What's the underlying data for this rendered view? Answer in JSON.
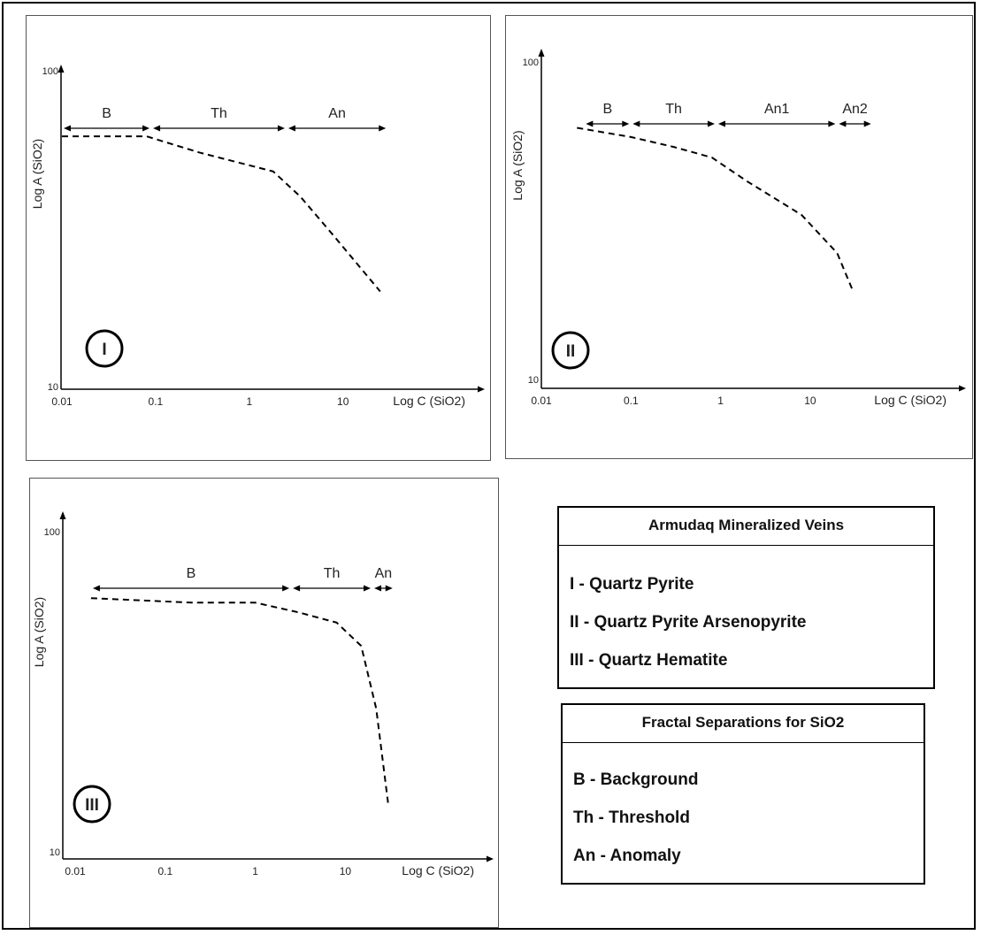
{
  "chart_data": [
    {
      "type": "line",
      "panel_label": "I",
      "xlabel": "Log C (SiO2)",
      "ylabel": "Log A (SiO2)",
      "x_scale": "log",
      "y_scale": "log",
      "xlim": [
        0.01,
        50
      ],
      "ylim": [
        10,
        100
      ],
      "x_ticks": [
        "0.01",
        "0.1",
        "1",
        "10"
      ],
      "y_ticks": [
        "100",
        "10"
      ],
      "series": [
        {
          "x": [
            0.01,
            0.08,
            0.3,
            1.8,
            3.5,
            8,
            25
          ],
          "y": [
            62,
            62,
            55,
            48,
            40,
            30,
            20
          ]
        }
      ],
      "segments": [
        {
          "label": "B",
          "x": [
            0.01,
            0.09
          ]
        },
        {
          "label": "Th",
          "x": [
            0.09,
            2.5
          ]
        },
        {
          "label": "An",
          "x": [
            2.5,
            30
          ]
        }
      ]
    },
    {
      "type": "line",
      "panel_label": "II",
      "xlabel": "Log C (SiO2)",
      "ylabel": "Log A (SiO2)",
      "x_scale": "log",
      "y_scale": "log",
      "xlim": [
        0.01,
        50
      ],
      "ylim": [
        10,
        100
      ],
      "x_ticks": [
        "0.01",
        "0.1",
        "1",
        "10"
      ],
      "y_ticks": [
        "100",
        "10"
      ],
      "series": [
        {
          "x": [
            0.025,
            0.1,
            0.3,
            0.8,
            2,
            8,
            20,
            30
          ],
          "y": [
            62,
            58,
            54,
            50,
            42,
            33,
            25,
            19
          ]
        }
      ],
      "segments": [
        {
          "label": "B",
          "x": [
            0.03,
            0.1
          ]
        },
        {
          "label": "Th",
          "x": [
            0.1,
            0.9
          ]
        },
        {
          "label": "An1",
          "x": [
            0.9,
            20
          ]
        },
        {
          "label": "An2",
          "x": [
            20,
            50
          ]
        }
      ]
    },
    {
      "type": "line",
      "panel_label": "III",
      "xlabel": "Log C (SiO2)",
      "ylabel": "Log A (SiO2)",
      "x_scale": "log",
      "y_scale": "log",
      "xlim": [
        0.01,
        60
      ],
      "ylim": [
        10,
        100
      ],
      "x_ticks": [
        "0.01",
        "0.1",
        "1",
        "10"
      ],
      "y_ticks": [
        "100",
        "10"
      ],
      "series": [
        {
          "x": [
            0.015,
            0.2,
            1,
            3,
            8,
            15,
            22,
            30
          ],
          "y": [
            62,
            60,
            60,
            56,
            52,
            44,
            28,
            14
          ]
        }
      ],
      "segments": [
        {
          "label": "B",
          "x": [
            0.015,
            2.5
          ]
        },
        {
          "label": "Th",
          "x": [
            2.5,
            20
          ]
        },
        {
          "label": "An",
          "x": [
            20,
            35
          ]
        }
      ]
    }
  ],
  "legend_veins": {
    "title": "Armudaq Mineralized Veins",
    "items": [
      "I - Quartz Pyrite",
      "II - Quartz Pyrite Arsenopyrite",
      "III - Quartz Hematite"
    ]
  },
  "legend_fractal": {
    "title": "Fractal Separations for SiO2",
    "items": [
      "B - Background",
      "Th - Threshold",
      "An - Anomaly"
    ]
  },
  "colors": {
    "line": "#000000",
    "text": "#222222"
  }
}
